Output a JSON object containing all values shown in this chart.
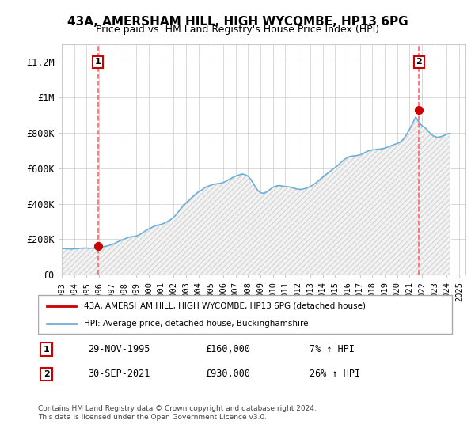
{
  "title": "43A, AMERSHAM HILL, HIGH WYCOMBE, HP13 6PG",
  "subtitle": "Price paid vs. HM Land Registry's House Price Index (HPI)",
  "sale1_date": "29-NOV-1995",
  "sale1_price": 160000,
  "sale1_label": "7% ↑ HPI",
  "sale2_date": "30-SEP-2021",
  "sale2_price": 930000,
  "sale2_label": "26% ↑ HPI",
  "legend_line1": "43A, AMERSHAM HILL, HIGH WYCOMBE, HP13 6PG (detached house)",
  "legend_line2": "HPI: Average price, detached house, Buckinghamshire",
  "footer": "Contains HM Land Registry data © Crown copyright and database right 2024.\nThis data is licensed under the Open Government Licence v3.0.",
  "hpi_color": "#6dafd6",
  "price_color": "#cc0000",
  "dashed_color": "#ff6666",
  "hatch_color": "#d0d0d0",
  "background_color": "#ffffff",
  "grid_color": "#cccccc",
  "ylim": [
    0,
    1300000
  ],
  "yticks": [
    0,
    200000,
    400000,
    600000,
    800000,
    1000000,
    1200000
  ],
  "ytick_labels": [
    "£0",
    "£200K",
    "£400K",
    "£600K",
    "£800K",
    "£1M",
    "£1.2M"
  ],
  "hpi_data_x": [
    1993.0,
    1993.25,
    1993.5,
    1993.75,
    1994.0,
    1994.25,
    1994.5,
    1994.75,
    1995.0,
    1995.25,
    1995.5,
    1995.75,
    1996.0,
    1996.25,
    1996.5,
    1996.75,
    1997.0,
    1997.25,
    1997.5,
    1997.75,
    1998.0,
    1998.25,
    1998.5,
    1998.75,
    1999.0,
    1999.25,
    1999.5,
    1999.75,
    2000.0,
    2000.25,
    2000.5,
    2000.75,
    2001.0,
    2001.25,
    2001.5,
    2001.75,
    2002.0,
    2002.25,
    2002.5,
    2002.75,
    2003.0,
    2003.25,
    2003.5,
    2003.75,
    2004.0,
    2004.25,
    2004.5,
    2004.75,
    2005.0,
    2005.25,
    2005.5,
    2005.75,
    2006.0,
    2006.25,
    2006.5,
    2006.75,
    2007.0,
    2007.25,
    2007.5,
    2007.75,
    2008.0,
    2008.25,
    2008.5,
    2008.75,
    2009.0,
    2009.25,
    2009.5,
    2009.75,
    2010.0,
    2010.25,
    2010.5,
    2010.75,
    2011.0,
    2011.25,
    2011.5,
    2011.75,
    2012.0,
    2012.25,
    2012.5,
    2012.75,
    2013.0,
    2013.25,
    2013.5,
    2013.75,
    2014.0,
    2014.25,
    2014.5,
    2014.75,
    2015.0,
    2015.25,
    2015.5,
    2015.75,
    2016.0,
    2016.25,
    2016.5,
    2016.75,
    2017.0,
    2017.25,
    2017.5,
    2017.75,
    2018.0,
    2018.25,
    2018.5,
    2018.75,
    2019.0,
    2019.25,
    2019.5,
    2019.75,
    2020.0,
    2020.25,
    2020.5,
    2020.75,
    2021.0,
    2021.25,
    2021.5,
    2021.75,
    2022.0,
    2022.25,
    2022.5,
    2022.75,
    2023.0,
    2023.25,
    2023.5,
    2023.75,
    2024.0,
    2024.25
  ],
  "hpi_data_y": [
    148000,
    147000,
    146000,
    145000,
    146000,
    147000,
    149000,
    150000,
    150000,
    149000,
    150000,
    151000,
    153000,
    156000,
    160000,
    164000,
    169000,
    176000,
    185000,
    193000,
    200000,
    207000,
    213000,
    215000,
    218000,
    225000,
    236000,
    248000,
    258000,
    267000,
    275000,
    280000,
    284000,
    291000,
    300000,
    310000,
    323000,
    342000,
    366000,
    388000,
    405000,
    420000,
    438000,
    452000,
    467000,
    477000,
    490000,
    498000,
    505000,
    510000,
    513000,
    515000,
    520000,
    528000,
    538000,
    548000,
    556000,
    562000,
    568000,
    565000,
    555000,
    535000,
    505000,
    478000,
    462000,
    459000,
    467000,
    480000,
    493000,
    500000,
    503000,
    500000,
    497000,
    496000,
    492000,
    487000,
    482000,
    481000,
    484000,
    490000,
    497000,
    507000,
    520000,
    535000,
    550000,
    564000,
    577000,
    591000,
    604000,
    618000,
    635000,
    650000,
    662000,
    668000,
    670000,
    672000,
    676000,
    683000,
    693000,
    700000,
    704000,
    706000,
    708000,
    710000,
    714000,
    720000,
    727000,
    734000,
    740000,
    748000,
    764000,
    790000,
    820000,
    855000,
    890000,
    860000,
    840000,
    830000,
    810000,
    790000,
    780000,
    775000,
    778000,
    785000,
    792000,
    798000
  ],
  "sale1_x": 1995.92,
  "sale2_x": 2021.75,
  "xtick_years": [
    1993,
    1994,
    1995,
    1996,
    1997,
    1998,
    1999,
    2000,
    2001,
    2002,
    2003,
    2004,
    2005,
    2006,
    2007,
    2008,
    2009,
    2010,
    2011,
    2012,
    2013,
    2014,
    2015,
    2016,
    2017,
    2018,
    2019,
    2020,
    2021,
    2022,
    2023,
    2024,
    2025
  ]
}
